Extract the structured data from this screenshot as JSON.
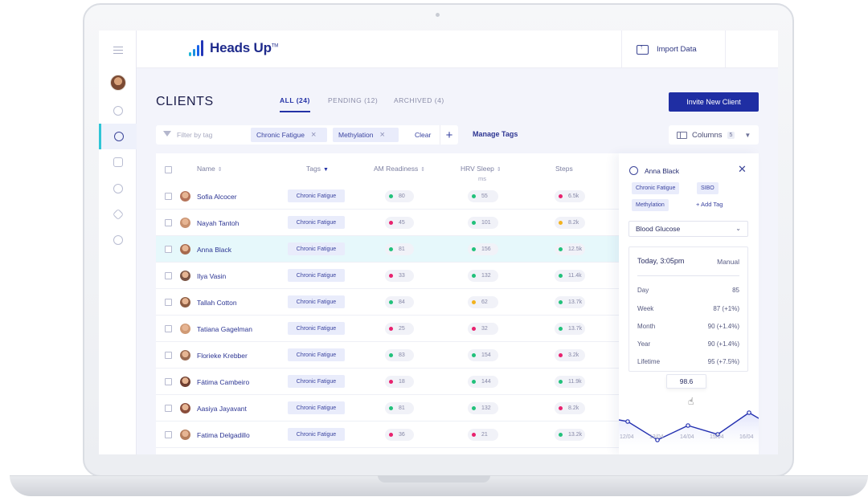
{
  "app": {
    "brand": "Heads Up",
    "brand_tm": "TM",
    "import_label": "Import Data"
  },
  "page": {
    "title": "CLIENTS",
    "tabs": [
      {
        "label": "ALL (24)",
        "active": true
      },
      {
        "label": "PENDING (12)",
        "active": false
      },
      {
        "label": "ARCHIVED (4)",
        "active": false
      }
    ],
    "invite_label": "Invite New Client"
  },
  "filters": {
    "placeholder": "Filter by tag",
    "chips": [
      "Chronic Fatigue",
      "Methylation"
    ],
    "clear_label": "Clear",
    "add_label": "+",
    "manage_tags_label": "Manage Tags",
    "columns_label": "Columns",
    "columns_count": "5"
  },
  "table": {
    "headers": {
      "name": "Name",
      "tags": "Tags",
      "am": "AM Readiness",
      "hrv": "HRV Sleep",
      "hrv_unit": "ms",
      "steps": "Steps"
    },
    "rows": [
      {
        "name": "Sofia Alcocer",
        "tag": "Chronic Fatigue",
        "am": "80",
        "am_color": "#22c17b",
        "hrv": "55",
        "hrv_color": "#22c17b",
        "steps": "6.5k",
        "steps_color": "#e8226e"
      },
      {
        "name": "Nayah Tantoh",
        "tag": "Chronic Fatigue",
        "am": "45",
        "am_color": "#e8226e",
        "hrv": "101",
        "hrv_color": "#22c17b",
        "steps": "8.2k",
        "steps_color": "#f2b21e"
      },
      {
        "name": "Anna Black",
        "tag": "Chronic Fatigue",
        "am": "81",
        "am_color": "#22c17b",
        "hrv": "156",
        "hrv_color": "#22c17b",
        "steps": "12.5k",
        "steps_color": "#22c17b",
        "highlight": true
      },
      {
        "name": "Ilya Vasin",
        "tag": "Chronic Fatigue",
        "am": "33",
        "am_color": "#e8226e",
        "hrv": "132",
        "hrv_color": "#22c17b",
        "steps": "11.4k",
        "steps_color": "#22c17b"
      },
      {
        "name": "Tallah Cotton",
        "tag": "Chronic Fatigue",
        "am": "84",
        "am_color": "#22c17b",
        "hrv": "62",
        "hrv_color": "#f2b21e",
        "steps": "13.7k",
        "steps_color": "#22c17b"
      },
      {
        "name": "Tatiana Gagelman",
        "tag": "Chronic Fatigue",
        "am": "25",
        "am_color": "#e8226e",
        "hrv": "32",
        "hrv_color": "#e8226e",
        "steps": "13.7k",
        "steps_color": "#22c17b"
      },
      {
        "name": "Florieke Krebber",
        "tag": "Chronic Fatigue",
        "am": "83",
        "am_color": "#22c17b",
        "hrv": "154",
        "hrv_color": "#22c17b",
        "steps": "3.2k",
        "steps_color": "#e8226e"
      },
      {
        "name": "Fátima Cambeiro",
        "tag": "Chronic Fatigue",
        "am": "18",
        "am_color": "#e8226e",
        "hrv": "144",
        "hrv_color": "#22c17b",
        "steps": "11.9k",
        "steps_color": "#22c17b"
      },
      {
        "name": "Aasiya Jayavant",
        "tag": "Chronic Fatigue",
        "am": "81",
        "am_color": "#22c17b",
        "hrv": "132",
        "hrv_color": "#22c17b",
        "steps": "8.2k",
        "steps_color": "#e8226e"
      },
      {
        "name": "Fatima Delgadillo",
        "tag": "Chronic Fatigue",
        "am": "36",
        "am_color": "#e8226e",
        "hrv": "21",
        "hrv_color": "#e8226e",
        "steps": "13.2k",
        "steps_color": "#22c17b"
      }
    ]
  },
  "panel": {
    "name": "Anna Black",
    "tags": [
      "Chronic Fatigue",
      "SIBO",
      "Methylation"
    ],
    "add_tag_label": "+ Add Tag",
    "metric": "Blood Glucose",
    "stat_header": "Today, 3:05pm",
    "stat_source": "Manual",
    "stats": [
      {
        "label": "Day",
        "value": "85"
      },
      {
        "label": "Week",
        "value": "87 (+1%)"
      },
      {
        "label": "Month",
        "value": "90 (+1.4%)"
      },
      {
        "label": "Year",
        "value": "90 (+1.4%)"
      },
      {
        "label": "Lifetime",
        "value": "95 (+7.5%)"
      }
    ],
    "tooltip": "98.6",
    "chart_dates": [
      "12/04",
      "13/04",
      "14/04",
      "15/04",
      "16/04"
    ]
  },
  "colors": {
    "accent": "#1f2ea3",
    "teal": "#2fc5d6",
    "good": "#22c17b",
    "bad": "#e8226e",
    "warn": "#f2b21e"
  }
}
